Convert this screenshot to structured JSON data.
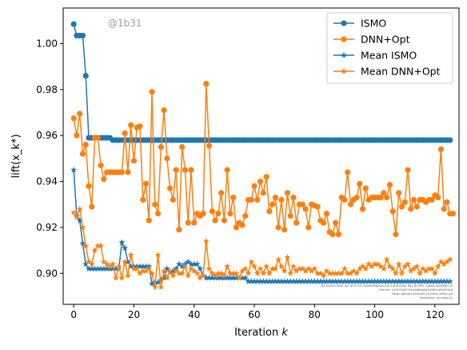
{
  "watermark": "@1b31",
  "chart_data": {
    "type": "line",
    "title": "",
    "xlabel": "Iteration",
    "xlabel_italic": "k",
    "ylabel": "lift(x_k*)",
    "xlim": [
      -3.5,
      128
    ],
    "ylim": [
      0.8865,
      1.0155
    ],
    "xticks": [
      0,
      20,
      40,
      60,
      80,
      100,
      120
    ],
    "yticks": [
      0.9,
      0.92,
      0.94,
      0.96,
      0.98,
      1.0
    ],
    "ytick_labels": [
      "0.90",
      "0.92",
      "0.94",
      "0.96",
      "0.98",
      "1.00"
    ],
    "grid": false,
    "legend_position": "top-right",
    "footnote": [
      "By Daniil Olsen Lyn @ ETHZ (dxjekc@gmail.com) and Deep Ray @ UPFL cdeep.ray@epfl.ch",
      "Commit: 1b31f3d47d7b3e8dead41a2b01a9d9930e",
      "Repo: github.com/o/pit_lyn/lune_airfoil_git",
      "Hostname: eu-login-41"
    ],
    "series": [
      {
        "name": "ISMO",
        "color": "#1f77b4",
        "marker": "circle",
        "values": [
          1.0085,
          1.0035,
          1.0035,
          1.0035,
          0.986,
          0.959,
          0.959,
          0.959,
          0.959,
          0.959,
          0.959,
          0.959,
          0.959,
          0.958,
          0.958,
          0.958,
          0.958,
          0.958,
          0.958,
          0.958,
          0.958,
          0.958,
          0.958,
          0.958,
          0.958,
          0.958,
          0.958,
          0.958,
          0.958,
          0.958,
          0.958,
          0.958,
          0.958,
          0.958,
          0.958,
          0.958,
          0.958,
          0.958,
          0.958,
          0.958,
          0.958,
          0.958,
          0.958,
          0.958,
          0.958,
          0.958,
          0.958,
          0.958,
          0.958,
          0.958,
          0.958,
          0.958,
          0.958,
          0.958,
          0.958,
          0.958,
          0.958,
          0.958,
          0.958,
          0.958,
          0.958,
          0.958,
          0.958,
          0.958,
          0.958,
          0.958,
          0.958,
          0.958,
          0.958,
          0.958,
          0.958,
          0.958,
          0.958,
          0.958,
          0.958,
          0.958,
          0.958,
          0.958,
          0.958,
          0.958,
          0.958,
          0.958,
          0.958,
          0.958,
          0.958,
          0.958,
          0.958,
          0.958,
          0.958,
          0.958,
          0.958,
          0.958,
          0.958,
          0.958,
          0.958,
          0.958,
          0.958,
          0.958,
          0.958,
          0.958,
          0.958,
          0.958,
          0.958,
          0.958,
          0.958,
          0.958,
          0.958,
          0.958,
          0.958,
          0.958,
          0.958,
          0.958,
          0.958,
          0.958,
          0.958,
          0.958,
          0.958,
          0.958,
          0.958,
          0.958,
          0.958,
          0.958,
          0.958,
          0.958,
          0.958,
          0.958
        ]
      },
      {
        "name": "DNN+Opt",
        "color": "#ff7f0e",
        "marker": "circle",
        "values": [
          0.9675,
          0.96,
          0.9695,
          0.952,
          0.956,
          0.938,
          0.929,
          0.959,
          0.959,
          0.947,
          0.941,
          0.944,
          0.944,
          0.944,
          0.944,
          0.944,
          0.944,
          0.961,
          0.944,
          0.9645,
          0.949,
          0.9635,
          0.964,
          0.932,
          0.939,
          0.923,
          0.979,
          0.93,
          0.926,
          0.955,
          0.971,
          0.95,
          0.937,
          0.932,
          0.945,
          0.919,
          0.955,
          0.945,
          0.922,
          0.945,
          0.922,
          0.926,
          0.925,
          0.926,
          0.9825,
          0.9555,
          0.927,
          0.923,
          0.926,
          0.935,
          0.923,
          0.945,
          0.926,
          0.933,
          0.92,
          0.922,
          0.921,
          0.925,
          0.932,
          0.932,
          0.938,
          0.932,
          0.94,
          0.935,
          0.942,
          0.927,
          0.93,
          0.933,
          0.92,
          0.932,
          0.919,
          0.935,
          0.925,
          0.933,
          0.922,
          0.93,
          0.93,
          0.928,
          0.92,
          0.93,
          0.9295,
          0.929,
          0.923,
          0.922,
          0.926,
          0.918,
          0.917,
          0.922,
          0.917,
          0.933,
          0.932,
          0.944,
          0.93,
          0.932,
          0.933,
          0.939,
          0.928,
          0.937,
          0.932,
          0.933,
          0.933,
          0.933,
          0.933,
          0.935,
          0.933,
          0.9385,
          0.927,
          0.917,
          0.935,
          0.929,
          0.931,
          0.945,
          0.928,
          0.932,
          0.929,
          0.932,
          0.932,
          0.931,
          0.932,
          0.932,
          0.934,
          0.933,
          0.954,
          0.928,
          0.931,
          0.926,
          0.926
        ]
      },
      {
        "name": "Mean ISMO",
        "color": "#1f77b4",
        "marker": "star",
        "values": [
          0.945,
          0.925,
          0.923,
          0.913,
          0.904,
          0.902,
          0.902,
          0.902,
          0.902,
          0.902,
          0.902,
          0.902,
          0.902,
          0.902,
          0.902,
          0.902,
          0.9135,
          0.911,
          0.905,
          0.903,
          0.903,
          0.903,
          0.903,
          0.903,
          0.903,
          0.903,
          0.8955,
          0.896,
          0.896,
          0.897,
          0.898,
          0.902,
          0.9005,
          0.901,
          0.902,
          0.904,
          0.903,
          0.904,
          0.905,
          0.904,
          0.904,
          0.904,
          0.902,
          0.899,
          0.898,
          0.898,
          0.898,
          0.898,
          0.898,
          0.898,
          0.898,
          0.898,
          0.898,
          0.898,
          0.898,
          0.898,
          0.898,
          0.898,
          0.8965,
          0.8965,
          0.8965,
          0.8965,
          0.8965,
          0.8965,
          0.8965,
          0.8965,
          0.8965,
          0.8965,
          0.8965,
          0.8965,
          0.8965,
          0.8965,
          0.8965,
          0.8965,
          0.8965,
          0.8965,
          0.8965,
          0.8965,
          0.8965,
          0.8965,
          0.8965,
          0.8965,
          0.8965,
          0.8965,
          0.8965,
          0.8965,
          0.8965,
          0.8965,
          0.8965,
          0.8965,
          0.8965,
          0.8965,
          0.8965,
          0.8965,
          0.8965,
          0.8965,
          0.8965,
          0.8965,
          0.8965,
          0.8965,
          0.8965,
          0.8965,
          0.8965,
          0.8965,
          0.8965,
          0.8965,
          0.8965,
          0.8965,
          0.8965,
          0.8965,
          0.8965,
          0.8965,
          0.8965,
          0.8965,
          0.8965,
          0.8965,
          0.8965,
          0.8965,
          0.8965,
          0.8965,
          0.8965,
          0.8965,
          0.8965,
          0.8965,
          0.8965,
          0.8965
        ]
      },
      {
        "name": "Mean DNN+Opt",
        "color": "#ff7f0e",
        "marker": "star",
        "values": [
          0.9265,
          0.9245,
          0.928,
          0.92,
          0.912,
          0.905,
          0.904,
          0.91,
          0.912,
          0.912,
          0.905,
          0.904,
          0.903,
          0.904,
          0.898,
          0.903,
          0.898,
          0.905,
          0.899,
          0.908,
          0.902,
          0.902,
          0.9,
          0.901,
          0.901,
          0.902,
          0.9,
          0.894,
          0.908,
          0.894,
          0.901,
          0.898,
          0.901,
          0.899,
          0.901,
          0.9,
          0.9,
          0.903,
          0.899,
          0.902,
          0.901,
          0.9,
          0.898,
          0.899,
          0.914,
          0.902,
          0.9,
          0.899,
          0.9,
          0.9,
          0.899,
          0.903,
          0.9,
          0.9,
          0.9,
          0.898,
          0.901,
          0.902,
          0.9,
          0.905,
          0.903,
          0.9,
          0.902,
          0.9,
          0.903,
          0.9,
          0.902,
          0.902,
          0.906,
          0.903,
          0.901,
          0.907,
          0.9,
          0.903,
          0.901,
          0.902,
          0.902,
          0.901,
          0.902,
          0.901,
          0.902,
          0.9,
          0.9,
          0.899,
          0.901,
          0.9,
          0.9,
          0.9,
          0.9,
          0.9,
          0.902,
          0.9,
          0.9,
          0.901,
          0.9,
          0.902,
          0.903,
          0.902,
          0.904,
          0.903,
          0.904,
          0.904,
          0.903,
          0.902,
          0.906,
          0.903,
          0.902,
          0.9,
          0.904,
          0.9,
          0.903,
          0.904,
          0.901,
          0.902,
          0.903,
          0.9,
          0.902,
          0.901,
          0.902,
          0.902,
          0.9,
          0.903,
          0.905,
          0.904,
          0.905,
          0.906
        ]
      }
    ]
  }
}
